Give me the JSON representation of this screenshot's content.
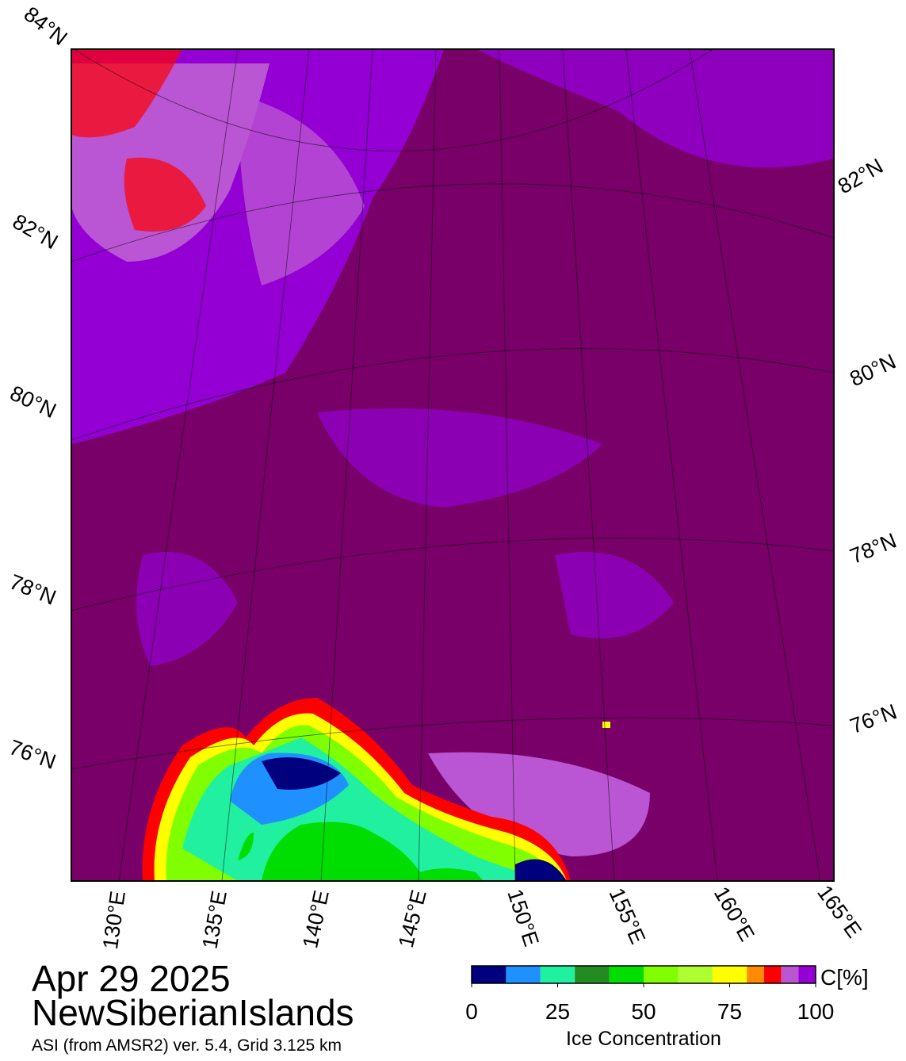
{
  "map": {
    "lat_labels_left": [
      "84°N",
      "82°N",
      "80°N",
      "78°N",
      "76°N"
    ],
    "lat_labels_right": [
      "82°N",
      "80°N",
      "78°N",
      "76°N"
    ],
    "lon_labels": [
      "130°E",
      "135°E",
      "140°E",
      "145°E",
      "150°E",
      "155°E",
      "160°E",
      "165°E"
    ]
  },
  "date": "Apr 29 2025",
  "region": "NewSiberianIslands",
  "source": "ASI (from AMSR2) ver. 5.4,  Grid 3.125 km",
  "colorbar": {
    "bounds": [
      0,
      10,
      20,
      30,
      40,
      50,
      60,
      70,
      80,
      85,
      90,
      95,
      100
    ],
    "colors": [
      "#00007f",
      "#1e90ff",
      "#20f0a0",
      "#228b22",
      "#00dd00",
      "#7fff00",
      "#adff2f",
      "#ffff00",
      "#ff8c00",
      "#ff0000",
      "#ba55d3",
      "#9400d3"
    ],
    "range": [
      0,
      100
    ],
    "ticks": [
      0,
      25,
      50,
      75,
      100
    ],
    "unit": "C[%]",
    "title": "Ice Concentration"
  }
}
